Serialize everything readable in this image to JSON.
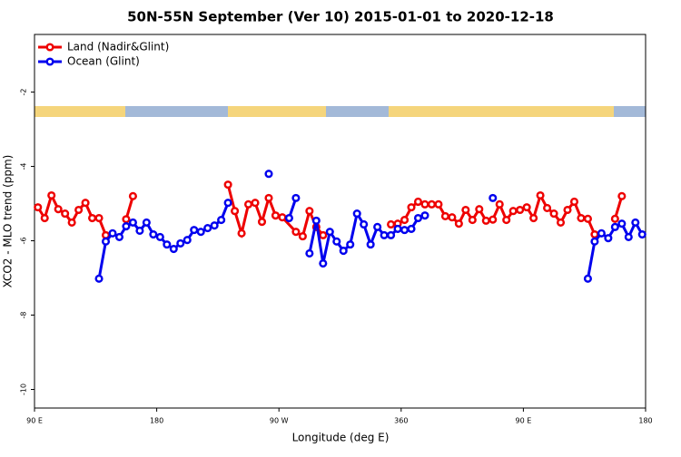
{
  "chart_data": {
    "type": "line",
    "title": "50N-55N September (Ver 10)   2015-01-01 to 2020-12-18",
    "x_label": "Longitude (deg E)",
    "y_label": "XCO2 - MLO trend (ppm)",
    "xlim": [
      90,
      540
    ],
    "xticks": [
      {
        "value": 90,
        "label": "90 E"
      },
      180,
      {
        "value": 270,
        "label": "90 W"
      },
      360,
      {
        "value": 450,
        "label": "90 E"
      },
      {
        "value": 540,
        "label": "180"
      }
    ],
    "ylim": [
      -10.5,
      -0.45
    ],
    "yticks": [
      -10,
      -8,
      -6,
      -4,
      -2
    ],
    "legend_position": "top-left",
    "series": [
      {
        "name": "Land (Nadir&Glint)",
        "color": "#ee0000",
        "x": [
          92.5,
          97.5,
          102.5,
          107.5,
          112.5,
          117.5,
          122.5,
          127.5,
          132.5,
          137.5,
          142.5,
          147.5,
          157.5,
          162.5,
          167.5,
          232.5,
          237.5,
          242.5,
          247.5,
          252.5,
          257.5,
          262.5,
          267.5,
          272.5,
          282.5,
          287.5,
          292.5,
          297.5,
          302.5,
          307.5,
          352.5,
          357.5,
          362.5,
          367.5,
          372.5,
          377.5,
          382.5,
          387.5,
          392.5,
          397.5,
          402.5,
          407.5,
          412.5,
          417.5,
          422.5,
          427.5,
          432.5,
          437.5,
          442.5,
          447.5,
          452.5,
          457.5,
          462.5,
          467.5,
          472.5,
          477.5,
          482.5,
          487.5,
          492.5,
          497.5,
          502.5,
          507.5,
          517.5,
          522.5
        ],
        "values": [
          -5.1,
          -5.39,
          -4.78,
          -5.15,
          -5.27,
          -5.51,
          -5.17,
          -4.98,
          -5.39,
          -5.39,
          -5.85,
          null,
          -5.42,
          -4.8,
          null,
          -4.49,
          -5.2,
          -5.8,
          -5.02,
          -4.98,
          -5.49,
          -4.85,
          -5.32,
          -5.37,
          -5.76,
          -5.88,
          -5.2,
          -5.63,
          -5.85,
          null,
          -5.56,
          -5.54,
          -5.44,
          -5.1,
          -4.95,
          -5.02,
          -5.02,
          -5.02,
          -5.34,
          -5.37,
          -5.54,
          -5.17,
          -5.44,
          -5.15,
          -5.46,
          -5.43,
          -5.02,
          -5.44,
          -5.2,
          -5.17,
          -5.1,
          -5.39,
          -4.78,
          -5.12,
          -5.27,
          -5.51,
          -5.17,
          -4.95,
          -5.39,
          -5.41,
          -5.83,
          null,
          -5.41,
          -4.8
        ]
      },
      {
        "name": "Ocean (Glint)",
        "color": "#0000ee",
        "x": [
          137.5,
          142.5,
          147.5,
          152.5,
          157.5,
          162.5,
          167.5,
          172.5,
          177.5,
          182.5,
          187.5,
          192.5,
          197.5,
          202.5,
          207.5,
          212.5,
          217.5,
          222.5,
          227.5,
          232.5,
          237.5,
          262.5,
          267.5,
          277.5,
          282.5,
          287.5,
          292.5,
          297.5,
          302.5,
          307.5,
          312.5,
          317.5,
          322.5,
          327.5,
          332.5,
          337.5,
          342.5,
          347.5,
          352.5,
          357.5,
          362.5,
          367.5,
          372.5,
          377.5,
          382.5,
          427.5,
          432.5,
          497.5,
          502.5,
          507.5,
          512.5,
          517.5,
          522.5,
          527.5,
          532.5,
          537.5
        ],
        "values": [
          -7.02,
          -6.02,
          -5.8,
          -5.9,
          -5.61,
          -5.51,
          -5.73,
          -5.51,
          -5.83,
          -5.9,
          -6.1,
          -6.22,
          -6.07,
          -5.98,
          -5.71,
          -5.76,
          -5.66,
          -5.59,
          -5.44,
          -4.98,
          null,
          -4.2,
          null,
          -5.39,
          -4.85,
          null,
          -6.34,
          -5.46,
          -6.61,
          -5.76,
          -6.02,
          -6.27,
          -6.1,
          -5.27,
          -5.56,
          -6.1,
          -5.63,
          -5.85,
          -5.85,
          -5.68,
          -5.71,
          -5.68,
          -5.39,
          -5.32,
          null,
          -4.85,
          null,
          -7.02,
          -6.02,
          -5.8,
          -5.93,
          -5.63,
          -5.54,
          -5.9,
          -5.51,
          -5.83
        ]
      }
    ]
  }
}
